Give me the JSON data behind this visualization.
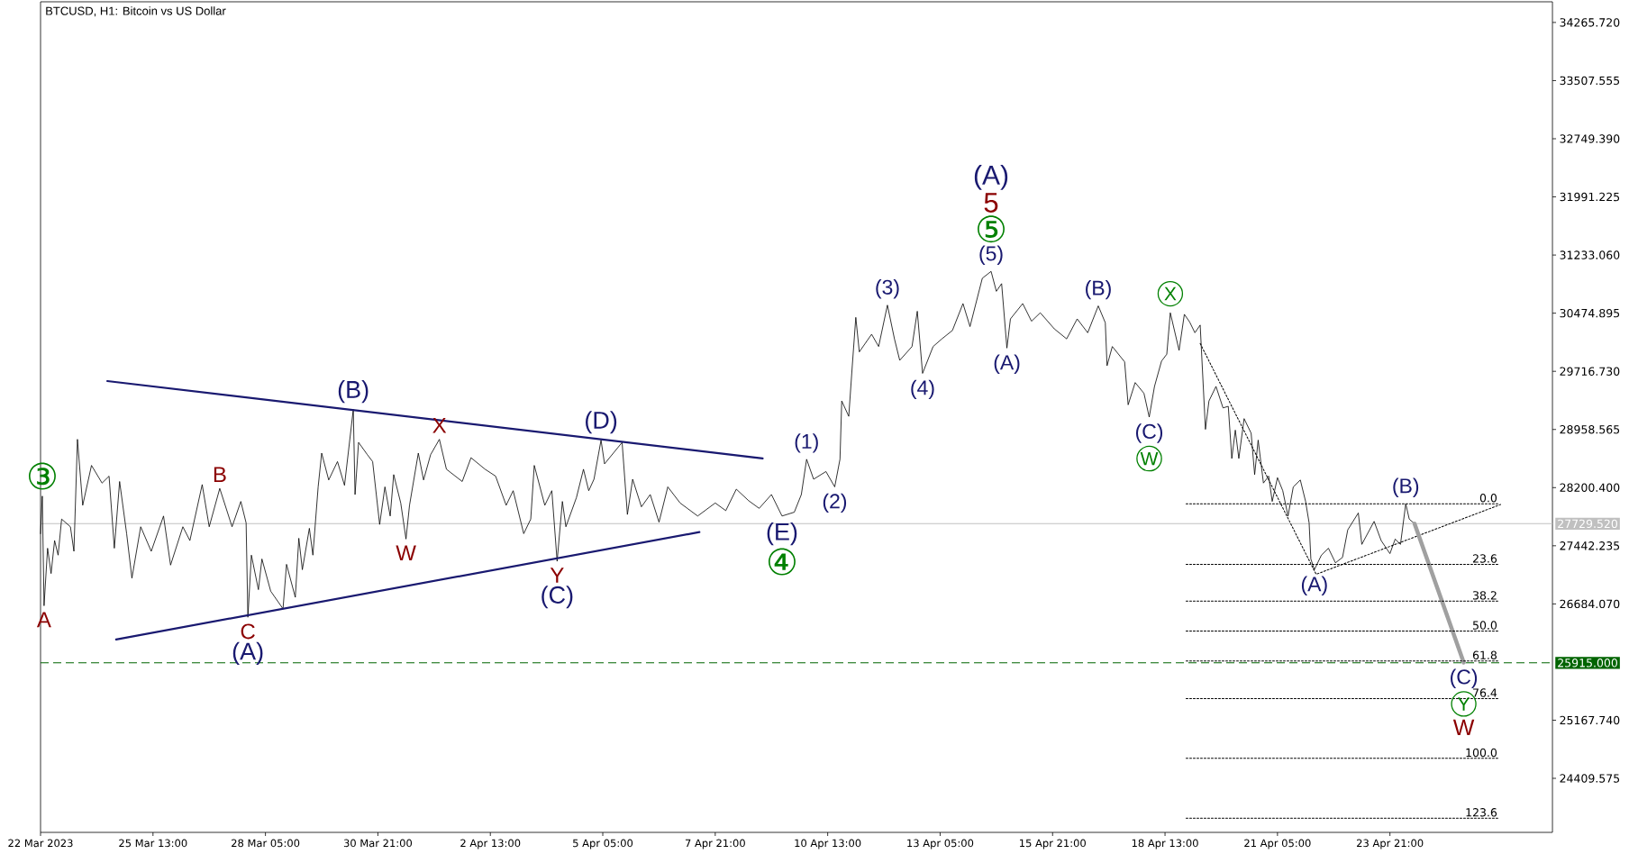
{
  "chart_data": {
    "type": "line",
    "title": "BTCUSD, H1:  Bitcoin vs US Dollar",
    "xlim": [
      "2023-03-22T21:00",
      "2023-04-27T17:30"
    ],
    "ylim": [
      23705,
      34535
    ],
    "xticks": [
      {
        "value": "2023-03-22T21:00",
        "label": "22 Mar 2023"
      },
      {
        "value": "2023-03-25T13:00",
        "label": "25 Mar 13:00"
      },
      {
        "value": "2023-03-28T05:00",
        "label": "28 Mar 05:00"
      },
      {
        "value": "2023-03-30T21:00",
        "label": "30 Mar 21:00"
      },
      {
        "value": "2023-04-02T13:00",
        "label": "2 Apr 13:00"
      },
      {
        "value": "2023-04-05T05:00",
        "label": "5 Apr 05:00"
      },
      {
        "value": "2023-04-07T21:00",
        "label": "7 Apr 21:00"
      },
      {
        "value": "2023-04-10T13:00",
        "label": "10 Apr 13:00"
      },
      {
        "value": "2023-04-13T05:00",
        "label": "13 Apr 05:00"
      },
      {
        "value": "2023-04-15T21:00",
        "label": "15 Apr 21:00"
      },
      {
        "value": "2023-04-18T13:00",
        "label": "18 Apr 13:00"
      },
      {
        "value": "2023-04-21T05:00",
        "label": "21 Apr 05:00"
      },
      {
        "value": "2023-04-23T21:00",
        "label": "23 Apr 21:00"
      }
    ],
    "yticks": [
      {
        "value": 24409.575,
        "label": "24409.575"
      },
      {
        "value": 25167.74,
        "label": "25167.740"
      },
      {
        "value": 26684.07,
        "label": "26684.070"
      },
      {
        "value": 27442.235,
        "label": "27442.235"
      },
      {
        "value": 28200.4,
        "label": "28200.400"
      },
      {
        "value": 28958.565,
        "label": "28958.565"
      },
      {
        "value": 29716.73,
        "label": "29716.730"
      },
      {
        "value": 30474.895,
        "label": "30474.895"
      },
      {
        "value": 31233.06,
        "label": "31233.060"
      },
      {
        "value": 31991.225,
        "label": "31991.225"
      },
      {
        "value": 32749.39,
        "label": "32749.390"
      },
      {
        "value": 33507.555,
        "label": "33507.555"
      },
      {
        "value": 34265.72,
        "label": "34265.720"
      }
    ],
    "ref_lines": [
      {
        "axis": "y",
        "value": 27729.52,
        "label": "27729.520",
        "color": "#c0c0c0"
      },
      {
        "axis": "y",
        "value": 25915,
        "label": "25915.000",
        "color": "#006400",
        "line_style": "dashed"
      }
    ],
    "series": [
      {
        "color": "#000000",
        "x": [
          "2023-03-22T21:00",
          "2023-03-22T22:00",
          "2023-03-22T23:00",
          "2023-03-23T01:00",
          "2023-03-23T03:00",
          "2023-03-23T05:00",
          "2023-03-23T07:00",
          "2023-03-23T09:00",
          "2023-03-23T14:00",
          "2023-03-23T16:00",
          "2023-03-23T18:00",
          "2023-03-23T21:00",
          "2023-03-24T02:00",
          "2023-03-24T08:00",
          "2023-03-24T12:00",
          "2023-03-24T15:00",
          "2023-03-24T18:00",
          "2023-03-24T22:00",
          "2023-03-25T01:00",
          "2023-03-25T06:00",
          "2023-03-25T12:00",
          "2023-03-25T19:00",
          "2023-03-25T23:00",
          "2023-03-26T06:00",
          "2023-03-26T10:00",
          "2023-03-26T17:00",
          "2023-03-26T21:00",
          "2023-03-27T03:00",
          "2023-03-27T10:00",
          "2023-03-27T15:00",
          "2023-03-27T18:00",
          "2023-03-27T19:00",
          "2023-03-27T21:00",
          "2023-03-28T01:00",
          "2023-03-28T03:00",
          "2023-03-28T08:00",
          "2023-03-28T15:00",
          "2023-03-28T17:00",
          "2023-03-28T22:00",
          "2023-03-29T00:00",
          "2023-03-29T02:00",
          "2023-03-29T06:00",
          "2023-03-29T08:00",
          "2023-03-29T11:00",
          "2023-03-29T13:00",
          "2023-03-29T17:00",
          "2023-03-29T22:00",
          "2023-03-30T02:00",
          "2023-03-30T07:00",
          "2023-03-30T08:00",
          "2023-03-30T10:00",
          "2023-03-30T15:00",
          "2023-03-30T18:00",
          "2023-03-30T22:00",
          "2023-03-31T01:00",
          "2023-03-31T04:00",
          "2023-03-31T06:00",
          "2023-03-31T10:00",
          "2023-03-31T13:00",
          "2023-03-31T15:00",
          "2023-03-31T20:00",
          "2023-03-31T23:00",
          "2023-04-01T03:00",
          "2023-04-01T08:00",
          "2023-04-01T12:00",
          "2023-04-01T21:00",
          "2023-04-02T02:00",
          "2023-04-02T10:00",
          "2023-04-02T16:00",
          "2023-04-02T22:00",
          "2023-04-03T02:00",
          "2023-04-03T08:00",
          "2023-04-03T12:00",
          "2023-04-03T14:00",
          "2023-04-03T20:00",
          "2023-04-04T00:00",
          "2023-04-04T03:00",
          "2023-04-04T06:00",
          "2023-04-04T08:00",
          "2023-04-04T14:00",
          "2023-04-04T18:00",
          "2023-04-04T21:00",
          "2023-04-05T00:00",
          "2023-04-05T04:00",
          "2023-04-05T06:00",
          "2023-04-05T16:00",
          "2023-04-05T19:00",
          "2023-04-05T22:00",
          "2023-04-06T03:00",
          "2023-04-06T08:00",
          "2023-04-06T13:00",
          "2023-04-06T18:00",
          "2023-04-07T01:00",
          "2023-04-07T11:00",
          "2023-04-07T21:00",
          "2023-04-08T03:00",
          "2023-04-08T09:00",
          "2023-04-08T16:00",
          "2023-04-08T22:00",
          "2023-04-09T05:00",
          "2023-04-09T11:00",
          "2023-04-09T18:00",
          "2023-04-09T22:00",
          "2023-04-10T01:00",
          "2023-04-10T05:00",
          "2023-04-10T12:00",
          "2023-04-10T17:00",
          "2023-04-10T20:00",
          "2023-04-10T21:00",
          "2023-04-11T01:00",
          "2023-04-11T03:00",
          "2023-04-11T05:00",
          "2023-04-11T07:00",
          "2023-04-11T14:00",
          "2023-04-11T18:00",
          "2023-04-11T23:00",
          "2023-04-12T03:00",
          "2023-04-12T06:00",
          "2023-04-12T13:00",
          "2023-04-12T16:00",
          "2023-04-12T19:00",
          "2023-04-13T01:00",
          "2023-04-13T06:00",
          "2023-04-13T12:00",
          "2023-04-13T18:00",
          "2023-04-13T22:00",
          "2023-04-14T05:00",
          "2023-04-14T10:00",
          "2023-04-14T13:00",
          "2023-04-14T16:00",
          "2023-04-14T19:00",
          "2023-04-14T21:00",
          "2023-04-15T04:00",
          "2023-04-15T09:00",
          "2023-04-15T14:00",
          "2023-04-15T22:00",
          "2023-04-16T05:00",
          "2023-04-16T11:00",
          "2023-04-16T17:00",
          "2023-04-16T23:00",
          "2023-04-17T03:00",
          "2023-04-17T04:00",
          "2023-04-17T07:00",
          "2023-04-17T14:00",
          "2023-04-17T16:00",
          "2023-04-17T20:00",
          "2023-04-18T01:00",
          "2023-04-18T04:00",
          "2023-04-18T07:00",
          "2023-04-18T11:00",
          "2023-04-18T14:00",
          "2023-04-18T16:00",
          "2023-04-18T21:00",
          "2023-04-19T00:00",
          "2023-04-19T03:00",
          "2023-04-19T06:00",
          "2023-04-19T09:00",
          "2023-04-19T12:00",
          "2023-04-19T14:00",
          "2023-04-19T18:00",
          "2023-04-19T22:00",
          "2023-04-20T01:00",
          "2023-04-20T03:00",
          "2023-04-20T05:00",
          "2023-04-20T07:00",
          "2023-04-20T10:00",
          "2023-04-20T14:00",
          "2023-04-20T16:00",
          "2023-04-20T18:00",
          "2023-04-20T21:00",
          "2023-04-21T00:00",
          "2023-04-21T02:00",
          "2023-04-21T05:00",
          "2023-04-21T08:00",
          "2023-04-21T11:00",
          "2023-04-21T14:00",
          "2023-04-21T18:00",
          "2023-04-21T21:00",
          "2023-04-21T23:00",
          "2023-04-22T00:00",
          "2023-04-22T02:00",
          "2023-04-22T06:00",
          "2023-04-22T10:00",
          "2023-04-22T14:00",
          "2023-04-22T18:00",
          "2023-04-22T21:00",
          "2023-04-23T03:00",
          "2023-04-23T05:00",
          "2023-04-23T12:00",
          "2023-04-23T16:00",
          "2023-04-23T21:00",
          "2023-04-24T00:00",
          "2023-04-24T03:00",
          "2023-04-24T06:00",
          "2023-04-24T08:00",
          "2023-04-24T11:00"
        ],
        "values": [
          27600,
          28090,
          26660,
          27410,
          27080,
          27510,
          27320,
          27790,
          27690,
          27370,
          28830,
          27970,
          28490,
          28260,
          28350,
          27410,
          28280,
          27600,
          27020,
          27690,
          27370,
          27830,
          27190,
          27690,
          27510,
          28240,
          27690,
          28190,
          27690,
          28020,
          27740,
          26510,
          27320,
          26870,
          27270,
          26850,
          26620,
          27200,
          26770,
          27540,
          27130,
          27670,
          27320,
          28210,
          28650,
          28300,
          28540,
          28230,
          29220,
          28110,
          28790,
          28630,
          28540,
          27720,
          28210,
          27830,
          28370,
          28000,
          27530,
          27970,
          28650,
          28300,
          28630,
          28830,
          28440,
          28280,
          28590,
          28440,
          28350,
          27970,
          28160,
          27600,
          27790,
          28490,
          27970,
          28160,
          27240,
          28020,
          27690,
          28070,
          28440,
          28160,
          28310,
          28820,
          28510,
          28790,
          27850,
          28310,
          27950,
          28110,
          27750,
          28210,
          28000,
          27830,
          28000,
          27900,
          28180,
          28030,
          27930,
          28110,
          27830,
          27880,
          28110,
          28570,
          28310,
          28410,
          28210,
          28570,
          29330,
          29130,
          29790,
          30420,
          29970,
          30200,
          30040,
          30580,
          30140,
          29860,
          30040,
          30500,
          29690,
          30040,
          30140,
          30250,
          30600,
          30300,
          30930,
          31020,
          30760,
          30860,
          30020,
          30400,
          30600,
          30370,
          30480,
          30270,
          30140,
          30400,
          30220,
          30570,
          30350,
          29790,
          30040,
          29840,
          29280,
          29570,
          29430,
          29120,
          29520,
          29850,
          29940,
          30480,
          29990,
          30460,
          30360,
          30220,
          30320,
          28960,
          29330,
          29520,
          29240,
          29260,
          28580,
          28950,
          28580,
          29100,
          28910,
          28370,
          28820,
          28260,
          28350,
          28020,
          28330,
          28160,
          27830,
          28210,
          28300,
          28020,
          27740,
          27270,
          27130,
          27320,
          27410,
          27220,
          27290,
          27650,
          27870,
          27460,
          27760,
          27510,
          27340,
          27530,
          27460,
          27990,
          27790,
          27730
        ]
      },
      {
        "color": "#191970",
        "x": [
          "2023-03-24T11:00",
          "2023-04-09T00:00"
        ],
        "values": [
          29590,
          28580
        ]
      },
      {
        "color": "#191970",
        "x": [
          "2023-03-24T16:00",
          "2023-04-07T12:00"
        ],
        "values": [
          26220,
          27620
        ]
      },
      {
        "color": "#000000",
        "line_style": "dotted",
        "x": [
          "2023-04-19T09:00",
          "2023-04-22T03:00",
          "2023-04-26T12:00"
        ],
        "values": [
          30080,
          27070,
          27980
        ]
      },
      {
        "color": "#a0a0a0",
        "x": [
          "2023-04-24T11:00",
          "2023-04-25T15:00"
        ],
        "values": [
          27730,
          25920
        ]
      },
      {
        "name": "0.0",
        "color": "#000000",
        "line_style": "dotted",
        "x": [
          "2023-04-19T01:00",
          "2023-04-26T11:00"
        ],
        "values": [
          27990,
          27990
        ]
      },
      {
        "name": "23.6",
        "color": "#000000",
        "line_style": "dotted",
        "x": [
          "2023-04-19T01:00",
          "2023-04-26T11:00"
        ],
        "values": [
          27200,
          27200
        ]
      },
      {
        "name": "38.2",
        "color": "#000000",
        "line_style": "dotted",
        "x": [
          "2023-04-19T01:00",
          "2023-04-26T11:00"
        ],
        "values": [
          26720,
          26720
        ]
      },
      {
        "name": "50.0",
        "color": "#000000",
        "line_style": "dotted",
        "x": [
          "2023-04-19T01:00",
          "2023-04-26T11:00"
        ],
        "values": [
          26330,
          26330
        ]
      },
      {
        "name": "61.8",
        "color": "#000000",
        "line_style": "dotted",
        "x": [
          "2023-04-19T01:00",
          "2023-04-26T11:00"
        ],
        "values": [
          25940,
          25940
        ]
      },
      {
        "name": "76.4",
        "color": "#000000",
        "line_style": "dotted",
        "x": [
          "2023-04-19T01:00",
          "2023-04-26T11:00"
        ],
        "values": [
          25450,
          25450
        ]
      },
      {
        "name": "100.0",
        "color": "#000000",
        "line_style": "dotted",
        "x": [
          "2023-04-19T01:00",
          "2023-04-26T11:00"
        ],
        "values": [
          24670,
          24670
        ]
      },
      {
        "name": "123.6",
        "color": "#000000",
        "line_style": "dotted",
        "x": [
          "2023-04-19T01:00",
          "2023-04-26T11:00"
        ],
        "values": [
          23890,
          23890
        ]
      }
    ],
    "annotations": [
      {
        "text": "③",
        "x": "2023-03-22T22:00",
        "y": 28090
      },
      {
        "text": "A",
        "x": "2023-03-22T23:00",
        "y": 26660
      },
      {
        "text": "B",
        "x": "2023-03-27T03:00",
        "y": 28190
      },
      {
        "text": "C",
        "x": "2023-03-27T19:00",
        "y": 26510
      },
      {
        "text": "(A)",
        "x": "2023-03-27T19:00",
        "y": 26510
      },
      {
        "text": "(B)",
        "x": "2023-03-30T07:00",
        "y": 29220
      },
      {
        "text": "X",
        "x": "2023-04-01T08:00",
        "y": 28830
      },
      {
        "text": "W",
        "x": "2023-03-31T13:00",
        "y": 27530
      },
      {
        "text": "Y",
        "x": "2023-04-04T03:00",
        "y": 27240
      },
      {
        "text": "(C)",
        "x": "2023-04-04T03:00",
        "y": 27240
      },
      {
        "text": "(D)",
        "x": "2023-04-05T04:00",
        "y": 28820
      },
      {
        "text": "(E)",
        "x": "2023-04-09T11:00",
        "y": 27830
      },
      {
        "text": "④",
        "x": "2023-04-09T11:00",
        "y": 27830
      },
      {
        "text": "(1)",
        "x": "2023-04-10T01:00",
        "y": 28570
      },
      {
        "text": "(2)",
        "x": "2023-04-10T17:00",
        "y": 28210
      },
      {
        "text": "(3)",
        "x": "2023-04-11T23:00",
        "y": 30580
      },
      {
        "text": "(4)",
        "x": "2023-04-12T19:00",
        "y": 29690
      },
      {
        "text": "(5)",
        "x": "2023-04-14T10:00",
        "y": 31020
      },
      {
        "text": "⑤",
        "x": "2023-04-14T10:00",
        "y": 31020
      },
      {
        "text": "5",
        "x": "2023-04-14T10:00",
        "y": 31020
      },
      "(A)",
      {
        "text": "(A)",
        "x": "2023-04-14T19:00",
        "y": 30020
      },
      {
        "text": "(B)",
        "x": "2023-04-16T23:00",
        "y": 30570
      },
      {
        "text": "(C)",
        "x": "2023-04-18T04:00",
        "y": 29120
      },
      {
        "text": "W",
        "x": "2023-04-18T04:00",
        "y": 29120
      },
      {
        "text": "X",
        "x": "2023-04-18T16:00",
        "y": 30480
      },
      {
        "text": "(A)",
        "x": "2023-04-22T02:00",
        "y": 27130
      },
      {
        "text": "(B)",
        "x": "2023-04-24T06:00",
        "y": 27990
      },
      {
        "text": "(C)",
        "x": "2023-04-25T15:00",
        "y": 25920
      },
      {
        "text": "Y",
        "x": "2023-04-25T15:00",
        "y": 25920
      },
      {
        "text": "W",
        "x": "2023-04-25T15:00",
        "y": 25920
      }
    ]
  }
}
